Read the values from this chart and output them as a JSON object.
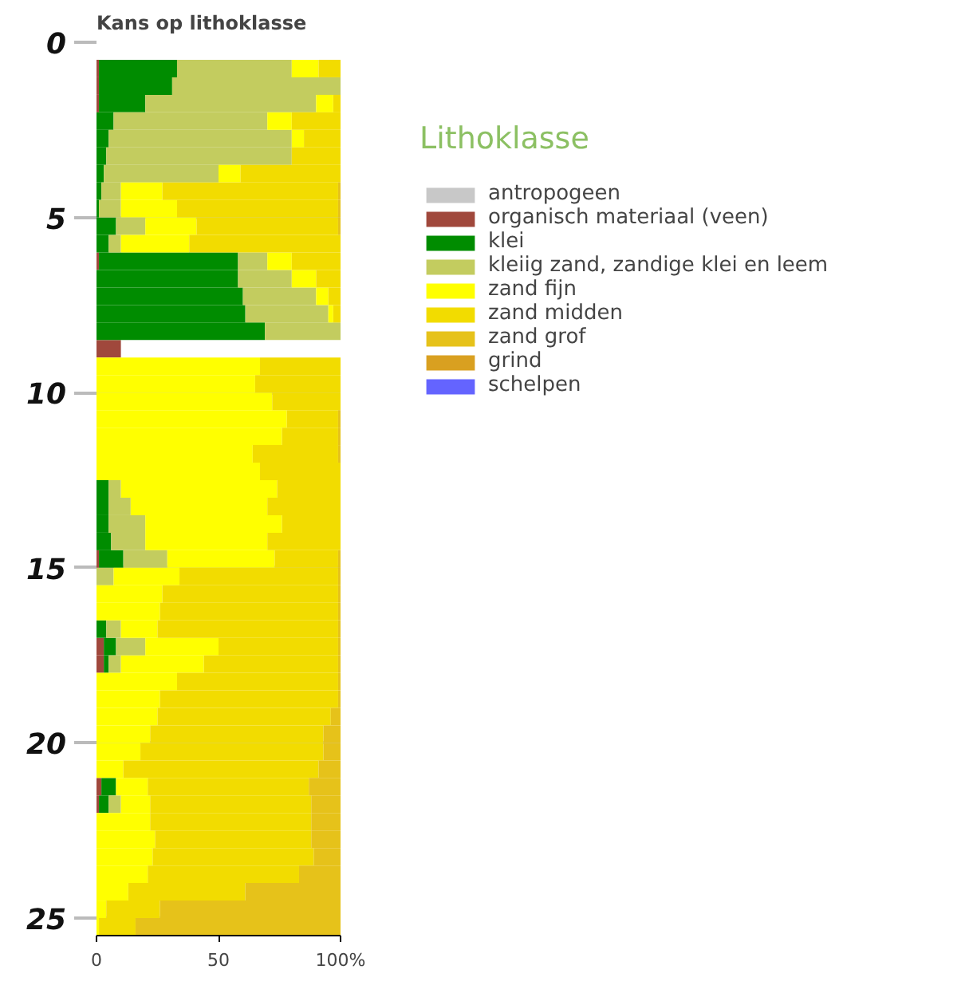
{
  "chart_data": {
    "type": "bar",
    "orientation": "horizontal",
    "stacked": true,
    "title": "Kans op lithoklasse",
    "legend_title": "Lithoklasse",
    "legend": "right",
    "grid": "y",
    "x": [
      0.75,
      1.25,
      1.75,
      2.25,
      2.75,
      3.25,
      3.75,
      4.25,
      4.75,
      5.25,
      5.75,
      6.25,
      6.75,
      7.25,
      7.75,
      8.25,
      8.75,
      9.25,
      9.75,
      10.25,
      10.75,
      11.25,
      11.75,
      12.25,
      12.75,
      13.25,
      13.75,
      14.25,
      14.75,
      15.25,
      15.75,
      16.25,
      16.75,
      17.25,
      17.75,
      18.25,
      18.75,
      19.25,
      19.75,
      20.25,
      20.75,
      21.25,
      21.75,
      22.25,
      22.75,
      23.25,
      23.75,
      24.25,
      24.75,
      25.25
    ],
    "xlim": [
      0,
      100
    ],
    "xticks": [
      0,
      50,
      {
        "value": 100,
        "label": "100%"
      }
    ],
    "ylim": [
      25.5,
      0
    ],
    "yticks": [
      0,
      5,
      10,
      15,
      20,
      25
    ],
    "series": [
      {
        "name": "antropogeen",
        "color": "#c8c8c8",
        "values": [
          0,
          0,
          0,
          0,
          0,
          0,
          0,
          0,
          0,
          0,
          0,
          0,
          0,
          0,
          0,
          0,
          0,
          0,
          0,
          0,
          0,
          0,
          0,
          0,
          0,
          0,
          0,
          0,
          0,
          0,
          0,
          0,
          0,
          0,
          0,
          0,
          0,
          0,
          0,
          0,
          0,
          0,
          0,
          0,
          0,
          0,
          0,
          0,
          0,
          0
        ]
      },
      {
        "name": "organisch materiaal (veen)",
        "color": "#a0483c",
        "values": [
          1,
          1,
          1,
          0,
          0,
          0,
          0,
          0,
          0,
          0,
          0,
          1,
          0,
          0,
          0,
          0,
          10,
          0,
          0,
          0,
          0,
          0,
          0,
          0,
          0,
          0,
          0,
          0,
          1,
          0,
          0,
          0,
          0,
          3,
          3,
          0,
          0,
          0,
          0,
          0,
          0,
          2,
          1,
          0,
          0,
          0,
          0,
          0,
          0,
          0
        ]
      },
      {
        "name": "klei",
        "color": "#008c00",
        "values": [
          32,
          30,
          19,
          7,
          5,
          4,
          3,
          2,
          1,
          8,
          5,
          57,
          58,
          60,
          61,
          69,
          0,
          0,
          0,
          0,
          0,
          0,
          0,
          0,
          5,
          5,
          5,
          6,
          10,
          0,
          0,
          0,
          4,
          5,
          2,
          0,
          0,
          0,
          0,
          0,
          0,
          6,
          4,
          0,
          0,
          0,
          0,
          0,
          0,
          0
        ]
      },
      {
        "name": "kleiig zand, zandige klei en leem",
        "color": "#c3cc5f",
        "values": [
          47,
          69,
          70,
          63,
          75,
          76,
          47,
          8,
          9,
          12,
          5,
          12,
          22,
          30,
          34,
          31,
          0,
          0,
          0,
          0,
          0,
          0,
          0,
          0,
          5,
          9,
          15,
          14,
          18,
          7,
          0,
          0,
          6,
          12,
          5,
          0,
          0,
          0,
          0,
          0,
          0,
          0,
          5,
          0,
          0,
          0,
          0,
          0,
          0,
          0
        ]
      },
      {
        "name": "zand fijn",
        "color": "#ffff00",
        "values": [
          11,
          0,
          7,
          10,
          5,
          0,
          9,
          17,
          23,
          21,
          28,
          10,
          10,
          5,
          2,
          0,
          0,
          67,
          65,
          72,
          78,
          76,
          64,
          67,
          64,
          56,
          56,
          50,
          44,
          27,
          27,
          26,
          15,
          30,
          34,
          33,
          26,
          25,
          22,
          18,
          11,
          13,
          12,
          22,
          24,
          23,
          21,
          13,
          4,
          1
        ]
      },
      {
        "name": "zand midden",
        "color": "#f2dc00",
        "values": [
          9,
          0,
          3,
          20,
          15,
          20,
          41,
          72,
          66,
          58,
          62,
          20,
          10,
          5,
          3,
          0,
          0,
          33,
          35,
          28,
          21,
          23,
          35,
          33,
          26,
          30,
          24,
          30,
          26,
          65,
          72,
          73,
          74,
          49,
          55,
          66,
          73,
          71,
          71,
          75,
          80,
          66,
          66,
          66,
          64,
          66,
          62,
          48,
          22,
          15
        ]
      },
      {
        "name": "zand grof",
        "color": "#e6c21a",
        "values": [
          0,
          0,
          0,
          0,
          0,
          0,
          0,
          1,
          1,
          1,
          0,
          0,
          0,
          0,
          0,
          0,
          0,
          0,
          0,
          0,
          1,
          1,
          1,
          0,
          0,
          0,
          0,
          0,
          1,
          1,
          1,
          1,
          1,
          1,
          1,
          1,
          1,
          4,
          7,
          7,
          9,
          13,
          12,
          12,
          12,
          11,
          17,
          39,
          74,
          84
        ]
      },
      {
        "name": "grind",
        "color": "#d9a020",
        "values": [
          0,
          0,
          0,
          0,
          0,
          0,
          0,
          0,
          0,
          0,
          0,
          0,
          0,
          0,
          0,
          0,
          0,
          0,
          0,
          0,
          0,
          0,
          0,
          0,
          0,
          0,
          0,
          0,
          0,
          0,
          0,
          0,
          0,
          0,
          0,
          0,
          0,
          0,
          0,
          0,
          0,
          0,
          0,
          0,
          0,
          0,
          0,
          0,
          0,
          0
        ]
      },
      {
        "name": "schelpen",
        "color": "#6464ff",
        "values": [
          0,
          0,
          0,
          0,
          0,
          0,
          0,
          0,
          0,
          0,
          0,
          0,
          0,
          0,
          0,
          0,
          0,
          0,
          0,
          0,
          0,
          0,
          0,
          0,
          0,
          0,
          0,
          0,
          0,
          0,
          0,
          0,
          0,
          0,
          0,
          0,
          0,
          0,
          0,
          0,
          0,
          0,
          0,
          0,
          0,
          0,
          0,
          0,
          0,
          0
        ]
      }
    ]
  }
}
